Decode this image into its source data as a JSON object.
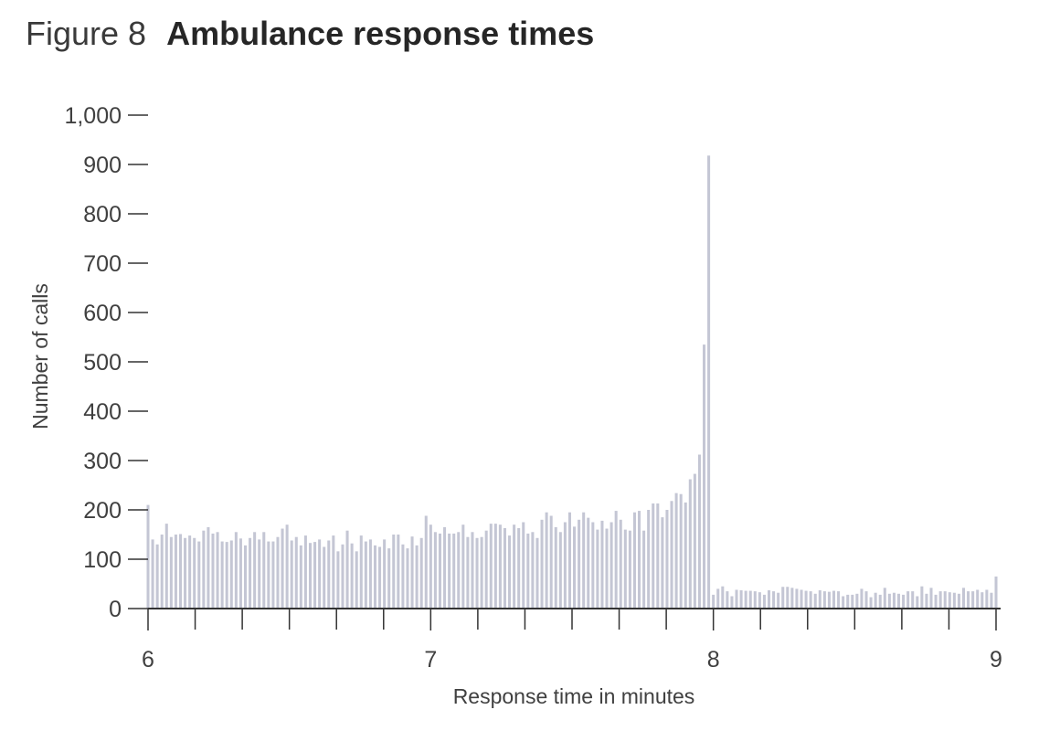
{
  "figure": {
    "label": "Figure 8",
    "title": "Ambulance response times"
  },
  "colors": {
    "bar": "#c4c6d4",
    "axis": "#333333",
    "text": "#404040"
  },
  "chart_data": {
    "type": "bar",
    "title": "Ambulance response times",
    "xlabel": "Response time in minutes",
    "ylabel": "Number of calls",
    "xlim": [
      6,
      9
    ],
    "ylim": [
      0,
      1000
    ],
    "grid": false,
    "legend": "none",
    "x_tick_labels": [
      "6",
      "7",
      "8",
      "9"
    ],
    "y_tick_labels": [
      "0",
      "100",
      "200",
      "300",
      "400",
      "500",
      "600",
      "700",
      "800",
      "900",
      "1,000"
    ],
    "bin_width_seconds": 1,
    "series": [
      {
        "values": [
          210,
          140,
          130,
          150,
          172,
          145,
          150,
          151,
          143,
          148,
          143,
          136,
          158,
          165,
          152,
          155,
          136,
          135,
          138,
          155,
          142,
          128,
          143,
          155,
          140,
          155,
          136,
          136,
          145,
          162,
          170,
          138,
          145,
          128,
          148,
          133,
          135,
          140,
          125,
          138,
          148,
          116,
          130,
          158,
          132,
          116,
          148,
          136,
          140,
          128,
          125,
          140,
          122,
          150,
          150,
          130,
          122,
          146,
          128,
          143,
          188,
          170,
          155,
          152,
          165,
          152,
          152,
          155,
          170,
          145,
          155,
          143,
          145,
          158,
          172,
          172,
          170,
          163,
          148,
          170,
          163,
          175,
          152,
          155,
          143,
          180,
          195,
          188,
          165,
          155,
          175,
          195,
          166,
          180,
          195,
          184,
          175,
          160,
          178,
          162,
          175,
          198,
          180,
          160,
          158,
          195,
          198,
          158,
          200,
          213,
          213,
          185,
          200,
          218,
          234,
          232,
          215,
          262,
          273,
          312,
          535,
          918,
          28,
          40,
          45,
          35,
          25,
          38,
          37,
          36,
          36,
          35,
          33,
          28,
          37,
          35,
          32,
          44,
          44,
          42,
          40,
          38,
          36,
          35,
          30,
          37,
          35,
          34,
          36,
          35,
          25,
          28,
          28,
          30,
          40,
          35,
          23,
          32,
          28,
          42,
          30,
          32,
          30,
          28,
          35,
          35,
          25,
          45,
          30,
          42,
          28,
          35,
          35,
          33,
          32,
          30,
          42,
          35,
          35,
          38,
          33,
          38,
          32,
          65
        ]
      }
    ]
  }
}
